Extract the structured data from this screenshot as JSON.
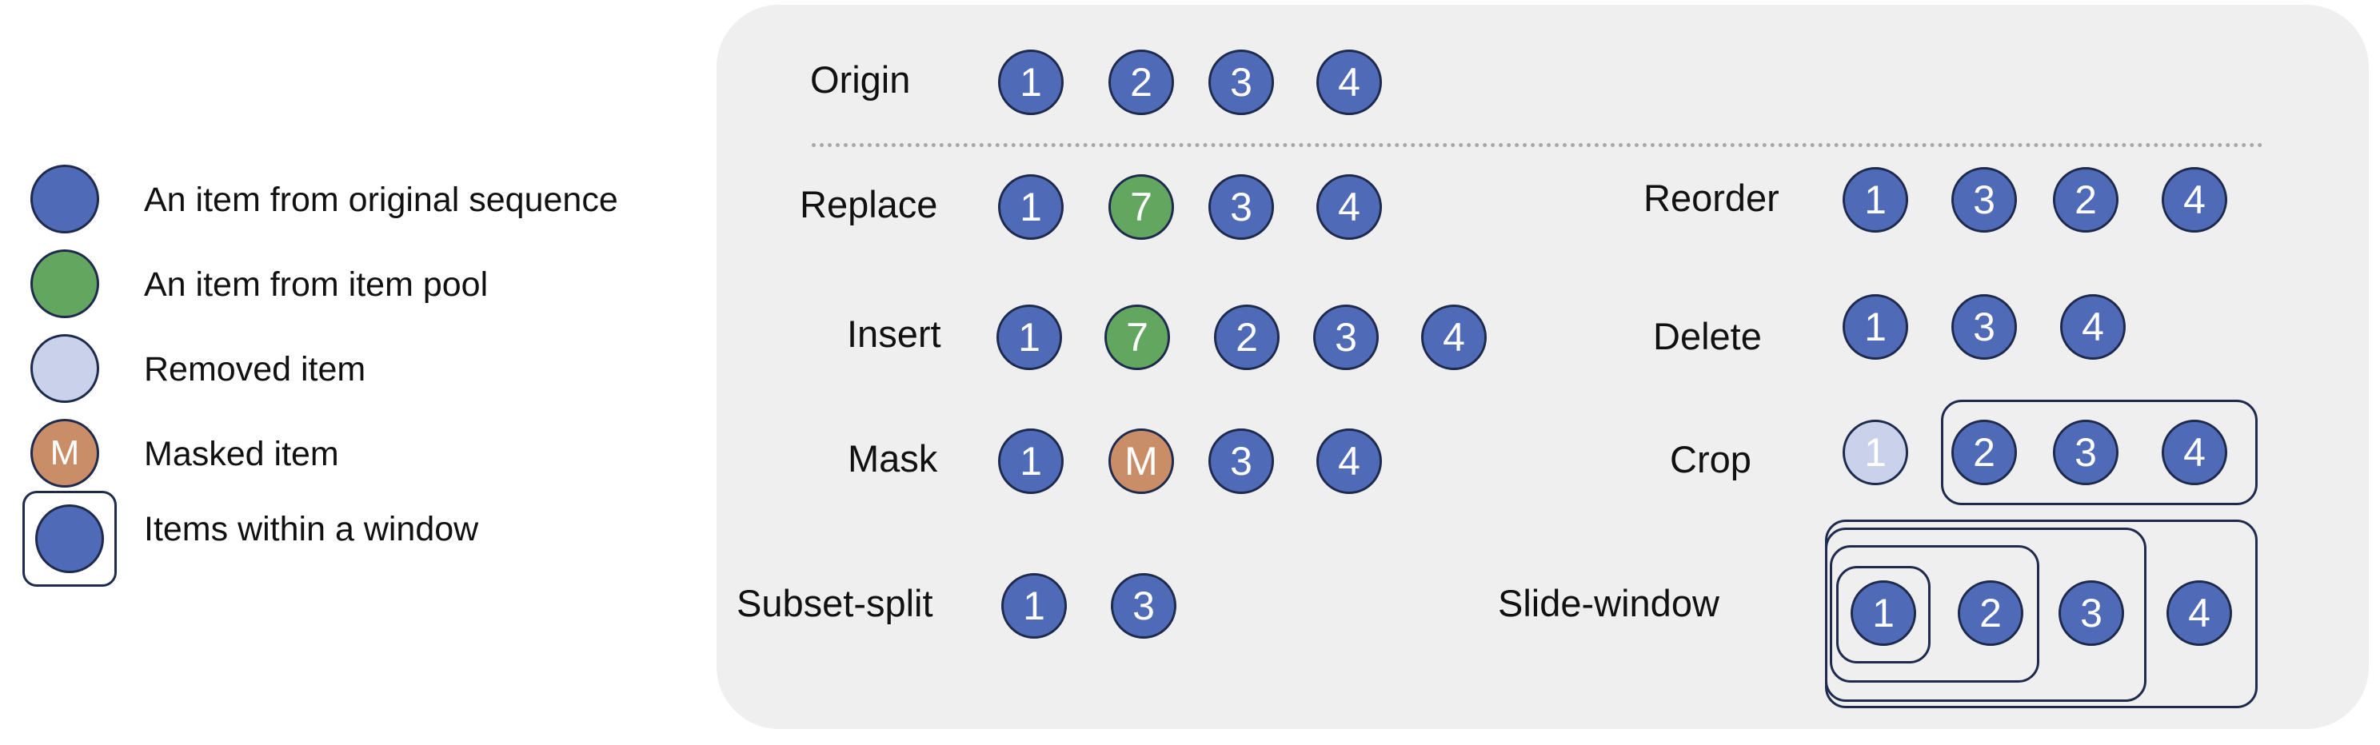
{
  "legend": {
    "items": [
      {
        "key": "original",
        "text": "An item from original sequence"
      },
      {
        "key": "pool",
        "text": "An item from item pool"
      },
      {
        "key": "removed",
        "text": "Removed item"
      },
      {
        "key": "masked",
        "text": "Masked item",
        "symbol": "M"
      },
      {
        "key": "window",
        "text": "Items within a window"
      }
    ]
  },
  "operations": {
    "origin": {
      "label": "Origin",
      "items": [
        "1",
        "2",
        "3",
        "4"
      ]
    },
    "replace": {
      "label": "Replace",
      "items": [
        "1",
        "7",
        "3",
        "4"
      ]
    },
    "insert": {
      "label": "Insert",
      "items": [
        "1",
        "7",
        "2",
        "3",
        "4"
      ]
    },
    "mask": {
      "label": "Mask",
      "items": [
        "1",
        "M",
        "3",
        "4"
      ]
    },
    "subset_split": {
      "label": "Subset-split",
      "items": [
        "1",
        "3"
      ]
    },
    "reorder": {
      "label": "Reorder",
      "items": [
        "1",
        "3",
        "2",
        "4"
      ]
    },
    "delete": {
      "label": "Delete",
      "items": [
        "1",
        "3",
        "4"
      ]
    },
    "crop": {
      "label": "Crop",
      "items": [
        "1",
        "2",
        "3",
        "4"
      ]
    },
    "slide_window": {
      "label": "Slide-window",
      "items": [
        "1",
        "2",
        "3",
        "4"
      ]
    }
  },
  "colors": {
    "original": "#4f6ab7",
    "pool": "#63a65f",
    "removed": "#c9d2ea",
    "masked": "#c98d68",
    "outline": "#1f2b4d",
    "panel": "#efefef"
  }
}
